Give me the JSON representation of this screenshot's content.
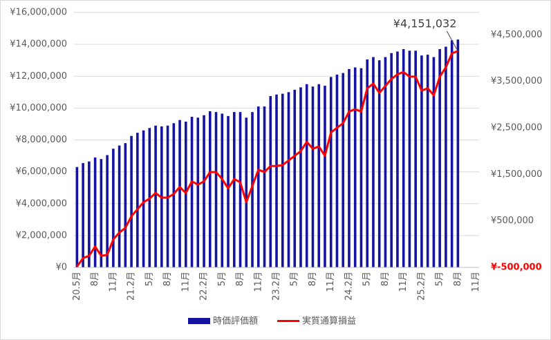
{
  "chart_data": {
    "type": "bar_line",
    "categories": [
      "20.5月",
      null,
      null,
      "8月",
      null,
      null,
      "11月",
      null,
      null,
      "21.2月",
      null,
      null,
      "5月",
      null,
      null,
      "8月",
      null,
      null,
      "11月",
      null,
      null,
      "22.2月",
      null,
      null,
      "5月",
      null,
      null,
      "8月",
      null,
      null,
      "11月",
      null,
      null,
      "23.2月",
      null,
      null,
      "5月",
      null,
      null,
      "8月",
      null,
      null,
      "11月",
      null,
      null,
      "24.2月",
      null,
      null,
      "5月",
      null,
      null,
      "8月",
      null,
      null,
      "11月",
      null,
      null,
      "25.2月",
      null,
      null,
      "5月",
      null,
      null,
      "8月",
      null,
      null,
      "11月"
    ],
    "series": [
      {
        "name": "時価評価額",
        "type": "bar",
        "color": "#1414a0",
        "values": [
          6300000,
          6550000,
          6650000,
          6900000,
          6800000,
          7050000,
          7450000,
          7650000,
          7800000,
          8250000,
          8450000,
          8600000,
          8750000,
          8900000,
          8850000,
          8900000,
          9050000,
          9250000,
          9150000,
          9450000,
          9400000,
          9550000,
          9800000,
          9750000,
          9650000,
          9500000,
          9750000,
          9750000,
          9400000,
          9750000,
          10100000,
          10100000,
          10750000,
          10850000,
          10900000,
          11000000,
          11150000,
          11300000,
          11500000,
          11350000,
          11500000,
          11400000,
          11950000,
          12100000,
          12200000,
          12450000,
          12550000,
          12500000,
          13050000,
          13200000,
          13000000,
          13200000,
          13450000,
          13550000,
          13700000,
          13600000,
          13600000,
          13300000,
          13350000,
          13200000,
          13700000,
          13850000,
          14250000,
          14300000,
          null,
          null,
          null
        ]
      },
      {
        "name": "実質通算損益",
        "type": "line",
        "axis": "y2",
        "color": "#ff0000",
        "values": [
          -480000,
          -300000,
          -250000,
          -50000,
          -250000,
          -230000,
          100000,
          250000,
          350000,
          600000,
          750000,
          900000,
          980000,
          1100000,
          1000000,
          1000000,
          1080000,
          1230000,
          1100000,
          1350000,
          1280000,
          1350000,
          1550000,
          1550000,
          1400000,
          1200000,
          1400000,
          1330000,
          900000,
          1250000,
          1600000,
          1550000,
          1680000,
          1680000,
          1700000,
          1800000,
          1900000,
          2000000,
          2200000,
          2050000,
          2100000,
          1900000,
          2400000,
          2500000,
          2600000,
          2850000,
          2900000,
          2850000,
          3350000,
          3450000,
          3250000,
          3400000,
          3550000,
          3650000,
          3700000,
          3600000,
          3600000,
          3300000,
          3350000,
          3200000,
          3600000,
          3800000,
          4100000,
          4151032,
          null,
          null,
          null
        ],
        "value_labels": [
          null,
          null,
          null,
          null,
          null,
          null,
          null,
          null,
          null,
          null,
          null,
          null,
          null,
          null,
          null,
          null,
          null,
          null,
          null,
          null,
          null,
          null,
          null,
          null,
          null,
          null,
          null,
          null,
          null,
          null,
          null,
          null,
          null,
          null,
          null,
          null,
          null,
          null,
          null,
          null,
          null,
          null,
          null,
          null,
          null,
          null,
          null,
          null,
          null,
          null,
          null,
          null,
          null,
          null,
          null,
          null,
          null,
          null,
          null,
          null,
          null,
          null,
          null,
          "¥4,151,032",
          null,
          null,
          null
        ]
      }
    ],
    "ylim": [
      0,
      16000000
    ],
    "yticks": [
      {
        "value": 0,
        "label": "¥0"
      },
      {
        "value": 2000000,
        "label": "¥2,000,000"
      },
      {
        "value": 4000000,
        "label": "¥4,000,000"
      },
      {
        "value": 6000000,
        "label": "¥6,000,000"
      },
      {
        "value": 8000000,
        "label": "¥8,000,000"
      },
      {
        "value": 10000000,
        "label": "¥10,000,000"
      },
      {
        "value": 12000000,
        "label": "¥12,000,000"
      },
      {
        "value": 14000000,
        "label": "¥14,000,000"
      },
      {
        "value": 16000000,
        "label": "¥16,000,000"
      }
    ],
    "y2lim": [
      -500000,
      4980000
    ],
    "y2ticks": [
      {
        "value": -500000,
        "label": "¥-500,000"
      },
      {
        "value": 500000,
        "label": "¥500,000"
      },
      {
        "value": 1500000,
        "label": "¥1,500,000"
      },
      {
        "value": 2500000,
        "label": "¥2,500,000"
      },
      {
        "value": 3500000,
        "label": "¥3,500,000"
      },
      {
        "value": 4500000,
        "label": "¥4,500,000"
      }
    ],
    "negative_tick_color": "#ff0000",
    "grid": true,
    "legend": "bottom"
  }
}
